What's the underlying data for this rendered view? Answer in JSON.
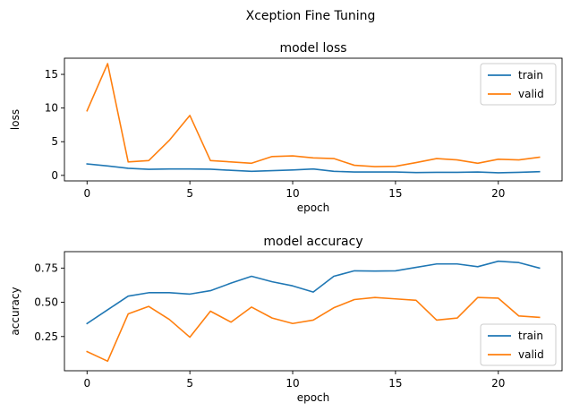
{
  "figure": {
    "title": "Xception Fine Tuning"
  },
  "chart_data": [
    {
      "type": "line",
      "title": "model loss",
      "xlabel": "epoch",
      "ylabel": "loss",
      "xlim": [
        -1.1,
        23.1
      ],
      "ylim": [
        -0.82,
        17.4
      ],
      "xticks": [
        0,
        5,
        10,
        15,
        20
      ],
      "yticks": [
        0,
        5,
        10,
        15
      ],
      "grid": false,
      "legend_position": "top-right",
      "series": [
        {
          "name": "train",
          "color": "#1f77b4",
          "x": [
            0,
            1,
            2,
            3,
            4,
            5,
            6,
            7,
            8,
            9,
            10,
            11,
            12,
            13,
            14,
            15,
            16,
            17,
            18,
            19,
            20,
            21,
            22
          ],
          "values": [
            1.7,
            1.4,
            1.05,
            0.9,
            0.95,
            0.95,
            0.92,
            0.75,
            0.6,
            0.7,
            0.8,
            0.95,
            0.6,
            0.5,
            0.5,
            0.5,
            0.42,
            0.45,
            0.45,
            0.5,
            0.38,
            0.45,
            0.55
          ]
        },
        {
          "name": "valid",
          "color": "#ff7f0e",
          "x": [
            0,
            1,
            2,
            3,
            4,
            5,
            6,
            7,
            8,
            9,
            10,
            11,
            12,
            13,
            14,
            15,
            16,
            17,
            18,
            19,
            20,
            21,
            22
          ],
          "values": [
            9.6,
            16.6,
            2.0,
            2.2,
            5.2,
            8.9,
            2.2,
            2.0,
            1.8,
            2.8,
            2.9,
            2.6,
            2.5,
            1.5,
            1.3,
            1.35,
            1.9,
            2.5,
            2.3,
            1.8,
            2.4,
            2.3,
            2.7
          ]
        }
      ]
    },
    {
      "type": "line",
      "title": "model accuracy",
      "xlabel": "epoch",
      "ylabel": "accuracy",
      "xlim": [
        -1.1,
        23.1
      ],
      "ylim": [
        0.0,
        0.87
      ],
      "xticks": [
        0,
        5,
        10,
        15,
        20
      ],
      "yticks": [
        0.25,
        0.5,
        0.75
      ],
      "ytick_labels": [
        "0.25",
        "0.50",
        "0.75"
      ],
      "grid": false,
      "legend_position": "bottom-right",
      "series": [
        {
          "name": "train",
          "color": "#1f77b4",
          "x": [
            0,
            1,
            2,
            3,
            4,
            5,
            6,
            7,
            8,
            9,
            10,
            11,
            12,
            13,
            14,
            15,
            16,
            17,
            18,
            19,
            20,
            21,
            22
          ],
          "values": [
            0.345,
            0.445,
            0.545,
            0.57,
            0.57,
            0.56,
            0.585,
            0.64,
            0.69,
            0.65,
            0.62,
            0.575,
            0.69,
            0.73,
            0.728,
            0.73,
            0.755,
            0.78,
            0.78,
            0.76,
            0.8,
            0.79,
            0.75
          ]
        },
        {
          "name": "valid",
          "color": "#ff7f0e",
          "x": [
            0,
            1,
            2,
            3,
            4,
            5,
            6,
            7,
            8,
            9,
            10,
            11,
            12,
            13,
            14,
            15,
            16,
            17,
            18,
            19,
            20,
            21,
            22
          ],
          "values": [
            0.14,
            0.07,
            0.415,
            0.47,
            0.375,
            0.245,
            0.435,
            0.355,
            0.465,
            0.385,
            0.345,
            0.37,
            0.46,
            0.52,
            0.535,
            0.525,
            0.515,
            0.37,
            0.385,
            0.535,
            0.53,
            0.4,
            0.39
          ]
        }
      ]
    }
  ]
}
